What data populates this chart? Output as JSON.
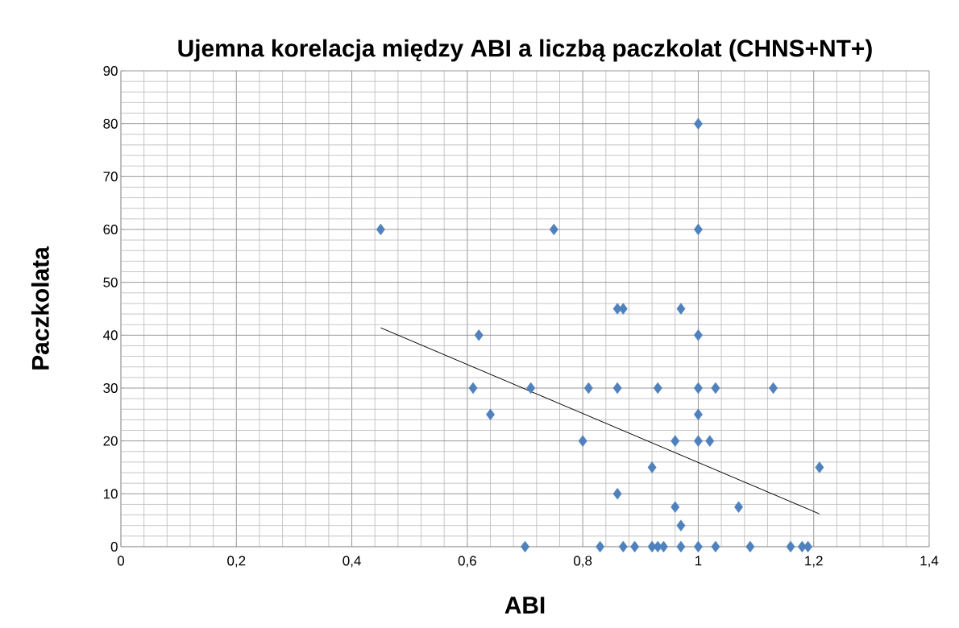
{
  "chart_data": {
    "type": "scatter",
    "title": "Ujemna korelacja między ABI a liczbą paczkolat (CHNS+NT+)",
    "xlabel": "ABI",
    "ylabel": "Paczkolata",
    "xlim": [
      0,
      1.4
    ],
    "ylim": [
      0,
      90
    ],
    "xticks": [
      0,
      {
        "value": 0.2,
        "label": "0,2"
      },
      {
        "value": 0.4,
        "label": "0,4"
      },
      {
        "value": 0.6,
        "label": "0,6"
      },
      {
        "value": 0.8,
        "label": "0,8"
      },
      1,
      {
        "value": 1.2,
        "label": "1,2"
      },
      {
        "value": 1.4,
        "label": "1,4"
      }
    ],
    "yticks": [
      0,
      10,
      20,
      30,
      40,
      50,
      60,
      70,
      80,
      90
    ],
    "grid": true,
    "marker": "diamond",
    "series": [
      {
        "color": "#4f81bd",
        "x": [
          0.45,
          0.75,
          0.62,
          0.61,
          0.64,
          0.71,
          0.81,
          0.8,
          1.0,
          1.0,
          0.86,
          0.87,
          0.97,
          1.0,
          0.86,
          0.93,
          1.0,
          1.03,
          1.13,
          1.0,
          0.96,
          1.0,
          1.02,
          0.92,
          1.21,
          0.86,
          0.96,
          1.07,
          0.97,
          0.7,
          0.83,
          0.87,
          0.89,
          0.92,
          0.93,
          0.94,
          0.97,
          1.0,
          1.03,
          1.09,
          1.16,
          1.18,
          1.19
        ],
        "values": [
          60,
          60,
          40,
          30,
          25,
          30,
          30,
          20,
          80,
          60,
          45,
          45,
          45,
          40,
          30,
          30,
          30,
          30,
          30,
          25,
          20,
          20,
          20,
          15,
          15,
          10,
          7.5,
          7.5,
          4,
          0,
          0,
          0,
          0,
          0,
          0,
          0,
          0,
          0,
          0,
          0,
          0,
          0,
          0
        ]
      },
      {
        "type": "line",
        "color": "#000000",
        "marker": "none",
        "x": [
          0.45,
          1.21
        ],
        "values": [
          41.4,
          6.2
        ]
      }
    ]
  }
}
